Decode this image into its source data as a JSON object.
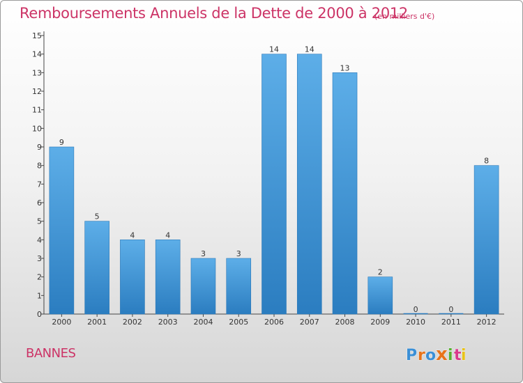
{
  "chart_data": {
    "type": "bar",
    "title": "Remboursements Annuels de la Dette de 2000 à 2012",
    "subtitle": "(en milliers d'€)",
    "categories": [
      "2000",
      "2001",
      "2002",
      "2003",
      "2004",
      "2005",
      "2006",
      "2007",
      "2008",
      "2009",
      "2010",
      "2011",
      "2012"
    ],
    "values": [
      9,
      5,
      4,
      4,
      3,
      3,
      14,
      14,
      13,
      2,
      0,
      0,
      8
    ],
    "ylim": [
      0,
      15
    ],
    "yticks": [
      0,
      1,
      2,
      3,
      4,
      5,
      6,
      7,
      8,
      9,
      10,
      11,
      12,
      13,
      14,
      15
    ],
    "xlabel": "",
    "ylabel": "",
    "grid": false,
    "bar_color_top": "#5daee8",
    "bar_color_bottom": "#2b7dc0"
  },
  "footer": {
    "commune": "BANNES",
    "logo_text": "Proxiti"
  },
  "colors": {
    "title": "#cc3366",
    "logo_letters": [
      "#3b8fd6",
      "#e8731a",
      "#3b8fd6",
      "#e8731a",
      "#58b030",
      "#d83a8c",
      "#e8c21a"
    ]
  }
}
